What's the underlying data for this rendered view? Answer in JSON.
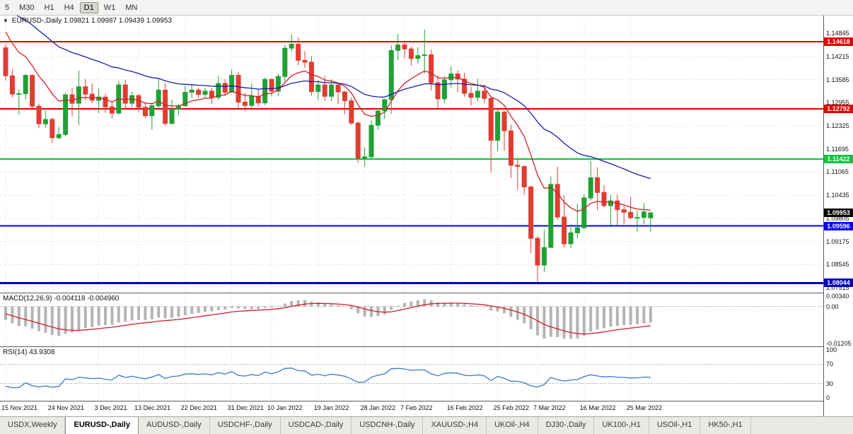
{
  "toolbar": {
    "timeframes": [
      {
        "label": "5",
        "active": false
      },
      {
        "label": "M30",
        "active": false
      },
      {
        "label": "H1",
        "active": false
      },
      {
        "label": "H4",
        "active": false
      },
      {
        "label": "D1",
        "active": true
      },
      {
        "label": "W1",
        "active": false
      },
      {
        "label": "MN",
        "active": false
      }
    ]
  },
  "chart": {
    "title_symbol": "EURUSD-,Daily",
    "ohlc_text": "1.09821 1.09987 1.09439 1.09953",
    "y_axis_labels": [
      "1.14845",
      "1.14215",
      "1.13585",
      "1.12955",
      "1.12325",
      "1.11695",
      "1.11065",
      "1.10435",
      "1.09805",
      "1.09175",
      "1.08545",
      "1.07915"
    ],
    "levels": [
      {
        "name": "resistance-1",
        "price": 1.14618,
        "label": "1.14618",
        "color": "#e00000",
        "width": 2
      },
      {
        "name": "resistance-2",
        "price": 1.12792,
        "label": "1.12792",
        "color": "#e00000",
        "width": 2
      },
      {
        "name": "support-green",
        "price": 1.11422,
        "label": "1.11422",
        "color": "#00c83c",
        "width": 2
      },
      {
        "name": "support-blue",
        "price": 1.09596,
        "label": "1.09596",
        "color": "#0000ff",
        "width": 2
      },
      {
        "name": "support-lower",
        "price": 1.08044,
        "label": "1.08044",
        "color": "#0000c0",
        "width": 3
      }
    ],
    "current_price": {
      "label": "1.09953",
      "color": "#000000"
    }
  },
  "chart_data": {
    "type": "candlestick",
    "symbol": "EURUSD",
    "timeframe": "Daily",
    "style": {
      "up_color": "#21a035",
      "down_color": "#e03c32",
      "ma_fast_color": "#cc2127",
      "ma_slow_color": "#1c1ca8",
      "macd_hist_color": "#b4b4b4",
      "macd_signal_color": "#cc2127",
      "rsi_color": "#3c78c8",
      "grid_color": "#d6d6d6",
      "level_dot_color": "#b0b0b0"
    },
    "prior_closes_for_indicators": [
      1.1621,
      1.1598,
      1.1556,
      1.1551,
      1.1573,
      1.1553,
      1.153,
      1.1594,
      1.1592,
      1.1596,
      1.1601,
      1.1612,
      1.1644,
      1.1653,
      1.165,
      1.1601,
      1.1599,
      1.1578,
      1.1606,
      1.1581,
      1.1601,
      1.1581,
      1.1562,
      1.152,
      1.1562,
      1.1558,
      1.152,
      1.1484,
      1.1448,
      1.1445
    ],
    "candles": [
      [
        1.1445,
        1.1456,
        1.1356,
        1.1369
      ],
      [
        1.1369,
        1.1386,
        1.131,
        1.1319
      ],
      [
        1.1319,
        1.1332,
        1.1263,
        1.132
      ],
      [
        1.132,
        1.1374,
        1.1305,
        1.137
      ],
      [
        1.137,
        1.1373,
        1.1275,
        1.1286
      ],
      [
        1.1286,
        1.1293,
        1.1226,
        1.1238
      ],
      [
        1.1238,
        1.1275,
        1.1227,
        1.125
      ],
      [
        1.125,
        1.1255,
        1.1186,
        1.12
      ],
      [
        1.12,
        1.1229,
        1.1196,
        1.1209
      ],
      [
        1.1209,
        1.1323,
        1.1204,
        1.1317
      ],
      [
        1.1317,
        1.1336,
        1.1258,
        1.1294
      ],
      [
        1.1294,
        1.1383,
        1.1235,
        1.1339
      ],
      [
        1.1339,
        1.136,
        1.1302,
        1.1319
      ],
      [
        1.1319,
        1.1348,
        1.1294,
        1.1302
      ],
      [
        1.1302,
        1.1334,
        1.1267,
        1.1311
      ],
      [
        1.1311,
        1.132,
        1.1268,
        1.1284
      ],
      [
        1.1284,
        1.1297,
        1.1252,
        1.1267
      ],
      [
        1.1267,
        1.1355,
        1.1263,
        1.1344
      ],
      [
        1.1344,
        1.1358,
        1.128,
        1.1294
      ],
      [
        1.1294,
        1.1325,
        1.1283,
        1.1315
      ],
      [
        1.1315,
        1.1319,
        1.1269,
        1.1283
      ],
      [
        1.1283,
        1.1297,
        1.1254,
        1.126
      ],
      [
        1.126,
        1.1296,
        1.1222,
        1.1287
      ],
      [
        1.1287,
        1.136,
        1.128,
        1.133
      ],
      [
        1.133,
        1.1349,
        1.1232,
        1.1239
      ],
      [
        1.1239,
        1.1304,
        1.1236,
        1.1278
      ],
      [
        1.1278,
        1.1293,
        1.1262,
        1.1287
      ],
      [
        1.1287,
        1.1342,
        1.1285,
        1.1324
      ],
      [
        1.1324,
        1.1344,
        1.1308,
        1.133
      ],
      [
        1.133,
        1.1337,
        1.1308,
        1.1318
      ],
      [
        1.1318,
        1.1336,
        1.1308,
        1.1327
      ],
      [
        1.1327,
        1.1335,
        1.1292,
        1.131
      ],
      [
        1.131,
        1.1369,
        1.1303,
        1.1348
      ],
      [
        1.1348,
        1.136,
        1.1314,
        1.1324
      ],
      [
        1.1324,
        1.1386,
        1.1321,
        1.137
      ],
      [
        1.137,
        1.1379,
        1.1279,
        1.1297
      ],
      [
        1.1297,
        1.1323,
        1.1272,
        1.1288
      ],
      [
        1.1288,
        1.1347,
        1.1279,
        1.1313
      ],
      [
        1.1313,
        1.1332,
        1.1285,
        1.1295
      ],
      [
        1.1295,
        1.1364,
        1.1289,
        1.1359
      ],
      [
        1.1359,
        1.1362,
        1.1313,
        1.1327
      ],
      [
        1.1327,
        1.1374,
        1.1314,
        1.1367
      ],
      [
        1.1367,
        1.1453,
        1.1354,
        1.1444
      ],
      [
        1.1444,
        1.1482,
        1.1434,
        1.1455
      ],
      [
        1.1455,
        1.1473,
        1.1398,
        1.1411
      ],
      [
        1.1411,
        1.1436,
        1.1391,
        1.1406
      ],
      [
        1.1406,
        1.1422,
        1.1314,
        1.1326
      ],
      [
        1.1326,
        1.1357,
        1.1302,
        1.1344
      ],
      [
        1.1344,
        1.1369,
        1.1301,
        1.1313
      ],
      [
        1.1313,
        1.136,
        1.13,
        1.1344
      ],
      [
        1.1344,
        1.1349,
        1.1291,
        1.1325
      ],
      [
        1.1325,
        1.1327,
        1.1264,
        1.1301
      ],
      [
        1.1301,
        1.131,
        1.1235,
        1.124
      ],
      [
        1.124,
        1.1245,
        1.1131,
        1.1145
      ],
      [
        1.1145,
        1.1174,
        1.1121,
        1.1148
      ],
      [
        1.1148,
        1.1248,
        1.1141,
        1.1234
      ],
      [
        1.1234,
        1.1279,
        1.1221,
        1.1273
      ],
      [
        1.1273,
        1.1306,
        1.1251,
        1.1304
      ],
      [
        1.1304,
        1.1452,
        1.1266,
        1.1438
      ],
      [
        1.1438,
        1.1483,
        1.1411,
        1.1453
      ],
      [
        1.1453,
        1.1465,
        1.1417,
        1.1442
      ],
      [
        1.1442,
        1.1449,
        1.1396,
        1.1416
      ],
      [
        1.1416,
        1.1447,
        1.1402,
        1.1424
      ],
      [
        1.1424,
        1.1495,
        1.1375,
        1.1426
      ],
      [
        1.1426,
        1.144,
        1.1329,
        1.135
      ],
      [
        1.135,
        1.1369,
        1.128,
        1.1306
      ],
      [
        1.1306,
        1.1368,
        1.1295,
        1.1358
      ],
      [
        1.1358,
        1.1395,
        1.1336,
        1.1374
      ],
      [
        1.1374,
        1.1384,
        1.1324,
        1.136
      ],
      [
        1.136,
        1.1377,
        1.1312,
        1.1321
      ],
      [
        1.1321,
        1.1339,
        1.1288,
        1.131
      ],
      [
        1.131,
        1.136,
        1.1299,
        1.1327
      ],
      [
        1.1327,
        1.1344,
        1.1294,
        1.1307
      ],
      [
        1.1307,
        1.1313,
        1.1106,
        1.1193
      ],
      [
        1.1193,
        1.1278,
        1.1164,
        1.127
      ],
      [
        1.127,
        1.1273,
        1.1165,
        1.1219
      ],
      [
        1.1219,
        1.1236,
        1.109,
        1.1125
      ],
      [
        1.1125,
        1.1145,
        1.1058,
        1.1122
      ],
      [
        1.1122,
        1.1124,
        1.1045,
        1.1066
      ],
      [
        1.1066,
        1.107,
        1.0886,
        1.0926
      ],
      [
        1.0926,
        1.0932,
        1.0806,
        1.0853
      ],
      [
        1.0853,
        1.095,
        1.0834,
        1.0901
      ],
      [
        1.0901,
        1.1095,
        1.09,
        1.1073
      ],
      [
        1.1073,
        1.1121,
        1.0977,
        1.0984
      ],
      [
        1.0984,
        1.1043,
        1.0901,
        1.0911
      ],
      [
        1.0911,
        1.0964,
        1.09,
        1.0941
      ],
      [
        1.0941,
        1.102,
        1.0926,
        1.0955
      ],
      [
        1.0955,
        1.1046,
        1.095,
        1.1036
      ],
      [
        1.1036,
        1.1137,
        1.1029,
        1.1091
      ],
      [
        1.1091,
        1.1119,
        1.1003,
        1.1051
      ],
      [
        1.1051,
        1.107,
        1.101,
        1.1015
      ],
      [
        1.1015,
        1.1044,
        1.0961,
        1.1028
      ],
      [
        1.1028,
        1.1045,
        1.0963,
        1.1004
      ],
      [
        1.1004,
        1.1014,
        1.0965,
        1.0997
      ],
      [
        1.0997,
        1.1039,
        1.0979,
        1.0982
      ],
      [
        1.0982,
        1.1002,
        1.0944,
        1.0983
      ],
      [
        1.0983,
        1.1022,
        1.0965,
        1.0998
      ],
      [
        1.09821,
        1.09987,
        1.09439,
        1.09953
      ]
    ],
    "date_ticks": [
      {
        "label": "15 Nov 2021",
        "index": 0
      },
      {
        "label": "24 Nov 2021",
        "index": 7
      },
      {
        "label": "3 Dec 2021",
        "index": 14
      },
      {
        "label": "13 Dec 2021",
        "index": 20
      },
      {
        "label": "22 Dec 2021",
        "index": 27
      },
      {
        "label": "31 Dec 2021",
        "index": 34
      },
      {
        "label": "10 Jan 2022",
        "index": 40
      },
      {
        "label": "19 Jan 2022",
        "index": 47
      },
      {
        "label": "28 Jan 2022",
        "index": 54
      },
      {
        "label": "7 Feb 2022",
        "index": 60
      },
      {
        "label": "16 Feb 2022",
        "index": 67
      },
      {
        "label": "25 Feb 2022",
        "index": 74
      },
      {
        "label": "7 Mar 2022",
        "index": 80
      },
      {
        "label": "16 Mar 2022",
        "index": 87
      },
      {
        "label": "25 Mar 2022",
        "index": 94
      }
    ],
    "indicators": {
      "ma_fast": {
        "type": "EMA",
        "period": 10
      },
      "ma_slow": {
        "type": "EMA",
        "period": 34
      },
      "macd": {
        "label": "MACD(12,26,9)",
        "values_text": "-0.004118 -0.004960",
        "fast": 12,
        "slow": 26,
        "signal": 9,
        "axis": [
          {
            "label": "0.00340",
            "value": 0.0034
          },
          {
            "label": "0.00",
            "value": 0
          },
          {
            "label": "-0.01205",
            "value": -0.01205
          }
        ]
      },
      "rsi": {
        "label": "RSI(14)",
        "value_text": "43.9308",
        "period": 14,
        "axis": [
          {
            "label": "100",
            "value": 100
          },
          {
            "label": "70",
            "value": 70
          },
          {
            "label": "30",
            "value": 30
          },
          {
            "label": "0",
            "value": 0
          }
        ],
        "levels": [
          70,
          30
        ]
      }
    }
  },
  "tabs": [
    {
      "label": "USDX,Weekly",
      "active": false
    },
    {
      "label": "EURUSD-,Daily",
      "active": true
    },
    {
      "label": "AUDUSD-,Daily",
      "active": false
    },
    {
      "label": "USDCHF-,Daily",
      "active": false
    },
    {
      "label": "USDCAD-,Daily",
      "active": false
    },
    {
      "label": "USDCNH-,Daily",
      "active": false
    },
    {
      "label": "XAUUSD-,H4",
      "active": false
    },
    {
      "label": "UKOil-,H4",
      "active": false
    },
    {
      "label": "DJ30-,Daily",
      "active": false
    },
    {
      "label": "UK100-,H1",
      "active": false
    },
    {
      "label": "USOil-,H1",
      "active": false
    },
    {
      "label": "HK50-,H1",
      "active": false
    }
  ]
}
